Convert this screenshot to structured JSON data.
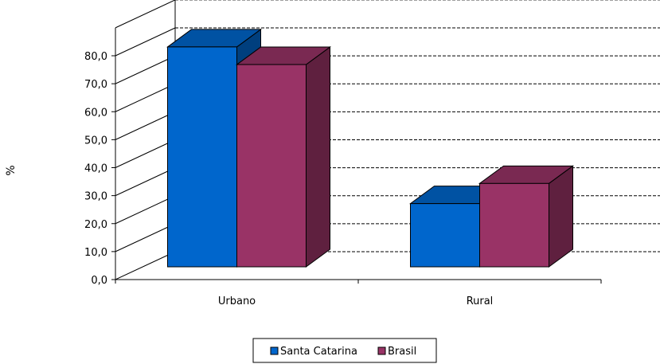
{
  "chart_data": {
    "type": "bar",
    "categories": [
      "Urbano",
      "Rural"
    ],
    "series": [
      {
        "name": "Santa Catarina",
        "values": [
          78.6,
          22.6
        ],
        "color": "#0066CC"
      },
      {
        "name": "Brasil",
        "values": [
          72.3,
          29.8
        ],
        "color": "#993366"
      }
    ],
    "yticks": [
      "0,0",
      "10,0",
      "20,0",
      "30,0",
      "40,0",
      "50,0",
      "60,0",
      "70,0",
      "80,0"
    ],
    "ylim": [
      0,
      80
    ],
    "ylabel": "%",
    "xlabel": "",
    "title": "",
    "grid": true,
    "legend_position": "bottom",
    "style": "3d-clustered"
  }
}
